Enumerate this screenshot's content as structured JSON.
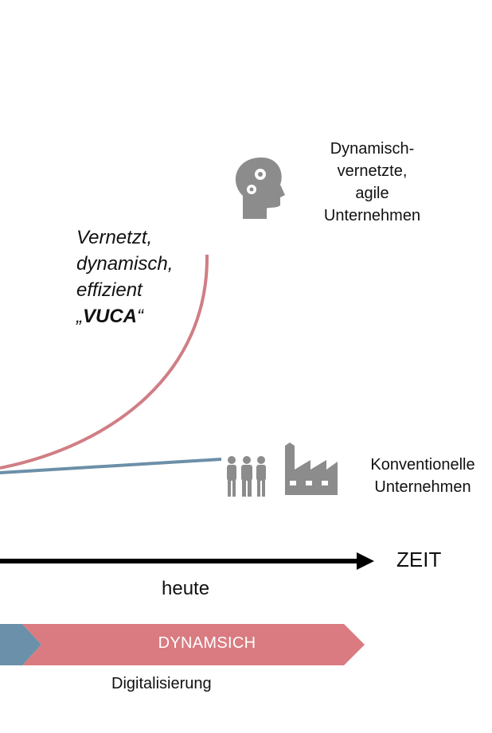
{
  "labels": {
    "agile_companies": [
      "Dynamisch-",
      "vernetzte,",
      "agile",
      "Unternehmen"
    ],
    "conventional_companies": [
      "Konventionelle",
      "Unternehmen"
    ],
    "vuca_lines": [
      "Vernetzt,",
      "dynamisch,",
      "effizient"
    ],
    "vuca_quote": {
      "open": "„",
      "word": "VUCA",
      "close": "“"
    },
    "axis": "ZEIT",
    "today": "heute",
    "phase_dynamic": "DYNAMSICH",
    "digitalization": "Digitalisierung"
  },
  "icons": {
    "agile": "head-with-gears-icon",
    "conventional_people": "people-group-icon",
    "conventional_factory": "factory-icon"
  },
  "colors": {
    "red_curve": "#d07e85",
    "blue_line": "#6c8fa8",
    "phase_red": "#d97b80",
    "phase_blue": "#6b91aa",
    "icon_gray": "#8c8c8c"
  }
}
